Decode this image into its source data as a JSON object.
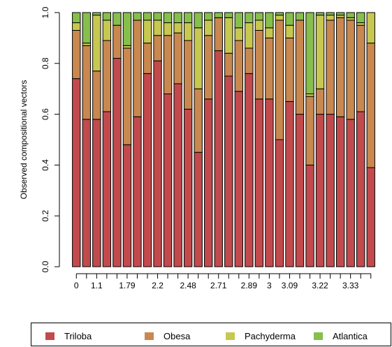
{
  "chart_data": {
    "type": "bar",
    "stacked": true,
    "ylabel": "Observed compositional vectors",
    "xlabel": "",
    "ylim": [
      0,
      1
    ],
    "yticks": [
      "0.0",
      "0.2",
      "0.4",
      "0.6",
      "0.8",
      "1.0"
    ],
    "xtick_labels": [
      {
        "index": 0,
        "label": "0"
      },
      {
        "index": 2,
        "label": "1.1"
      },
      {
        "index": 5,
        "label": "1.79"
      },
      {
        "index": 8,
        "label": "2.2"
      },
      {
        "index": 11,
        "label": "2.48"
      },
      {
        "index": 14,
        "label": "2.71"
      },
      {
        "index": 17,
        "label": "2.89"
      },
      {
        "index": 19,
        "label": "3"
      },
      {
        "index": 21,
        "label": "3.09"
      },
      {
        "index": 24,
        "label": "3.22"
      },
      {
        "index": 27,
        "label": "3.33"
      }
    ],
    "legend_placement": "bottom",
    "grid": false,
    "series": [
      {
        "name": "Triloba",
        "color": "#C24A4D",
        "values": [
          0.74,
          0.58,
          0.58,
          0.61,
          0.82,
          0.48,
          0.59,
          0.76,
          0.81,
          0.68,
          0.72,
          0.62,
          0.45,
          0.66,
          0.85,
          0.75,
          0.69,
          0.76,
          0.66,
          0.66,
          0.5,
          0.65,
          0.6,
          0.4,
          0.6,
          0.6,
          0.59,
          0.58,
          0.61,
          0.39
        ]
      },
      {
        "name": "Obesa",
        "color": "#C9884F",
        "values": [
          0.19,
          0.29,
          0.19,
          0.28,
          0.13,
          0.38,
          0.38,
          0.12,
          0.1,
          0.23,
          0.2,
          0.27,
          0.25,
          0.25,
          0.13,
          0.09,
          0.2,
          0.1,
          0.27,
          0.24,
          0.47,
          0.25,
          0.37,
          0.27,
          0.1,
          0.37,
          0.39,
          0.39,
          0.34,
          0.49
        ]
      },
      {
        "name": "Pachyderma",
        "color": "#C7C84F",
        "values": [
          0.03,
          0.01,
          0.22,
          0.08,
          0.0,
          0.01,
          0.0,
          0.09,
          0.06,
          0.05,
          0.04,
          0.07,
          0.24,
          0.06,
          0.0,
          0.14,
          0.05,
          0.1,
          0.04,
          0.04,
          0.02,
          0.05,
          0.0,
          0.01,
          0.29,
          0.02,
          0.01,
          0.01,
          0.01,
          0.12
        ]
      },
      {
        "name": "Atlantica",
        "color": "#86BF4C",
        "values": [
          0.04,
          0.12,
          0.01,
          0.03,
          0.05,
          0.13,
          0.03,
          0.03,
          0.03,
          0.04,
          0.04,
          0.04,
          0.06,
          0.03,
          0.02,
          0.02,
          0.06,
          0.04,
          0.03,
          0.06,
          0.01,
          0.05,
          0.03,
          0.32,
          0.01,
          0.01,
          0.01,
          0.02,
          0.04,
          0.0
        ]
      }
    ]
  }
}
